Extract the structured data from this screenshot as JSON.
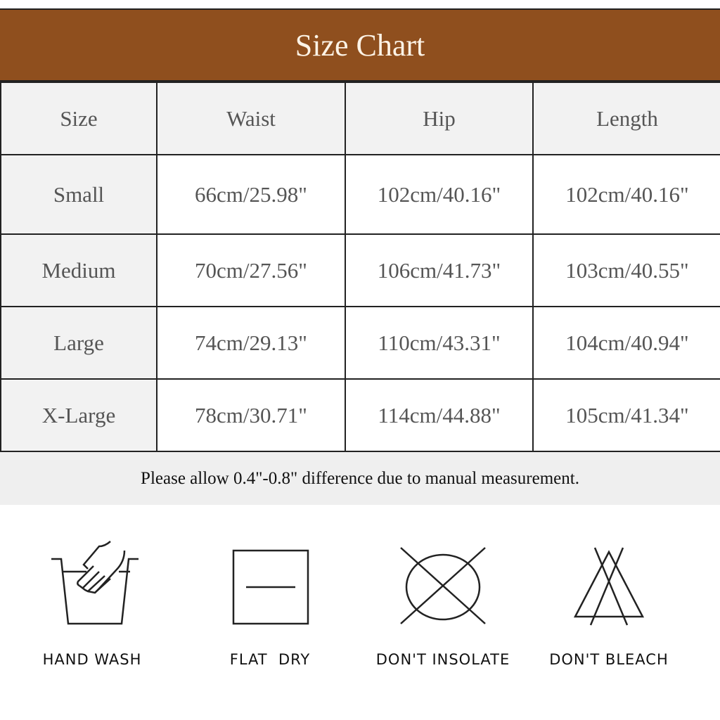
{
  "title": "Size Chart",
  "colors": {
    "banner": "#8f4f1e",
    "header_cell": "#f2f2f2",
    "note_band": "#efefef"
  },
  "table": {
    "headers": [
      "Size",
      "Waist",
      "Hip",
      "Length"
    ],
    "rows": [
      [
        "Small",
        "66cm/25.98\"",
        "102cm/40.16\"",
        "102cm/40.16\""
      ],
      [
        "Medium",
        "70cm/27.56\"",
        "106cm/41.73\"",
        "103cm/40.55\""
      ],
      [
        "Large",
        "74cm/29.13\"",
        "110cm/43.31\"",
        "104cm/40.94\""
      ],
      [
        "X-Large",
        "78cm/30.71\"",
        "114cm/44.88\"",
        "105cm/41.34\""
      ]
    ]
  },
  "note": "Please allow 0.4\"-0.8\" difference due to manual measurement.",
  "care": [
    {
      "icon": "hand-wash-icon",
      "label": "HAND WASH"
    },
    {
      "icon": "flat-dry-icon",
      "label": "FLAT  DRY"
    },
    {
      "icon": "dont-insolate-icon",
      "label": "DON'T INSOLATE"
    },
    {
      "icon": "dont-bleach-icon",
      "label": "DON'T BLEACH"
    }
  ]
}
